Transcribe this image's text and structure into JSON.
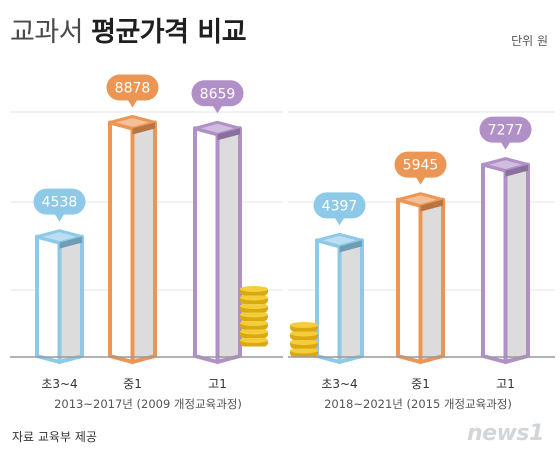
{
  "title_light": "교과서",
  "title_bold": "평균가격 비교",
  "unit": "단위 원",
  "source": "자료 교육부 제공",
  "logo": "news1",
  "chart_data": {
    "type": "bar",
    "title": "교과서 평균가격 비교",
    "unit": "원",
    "groups": [
      {
        "label": "2013~2017년 (2009 개정교육과정)",
        "categories": [
          "초3~4",
          "중1",
          "고1"
        ],
        "values": [
          4538,
          8878,
          8659
        ]
      },
      {
        "label": "2018~2021년 (2015 개정교육과정)",
        "categories": [
          "초3~4",
          "중1",
          "고1"
        ],
        "values": [
          4397,
          5945,
          7277
        ]
      }
    ],
    "colors": {
      "elementary": "#8ec9e8",
      "middle": "#ec9655",
      "high": "#b190c8"
    },
    "grid": true,
    "legend": "none"
  }
}
